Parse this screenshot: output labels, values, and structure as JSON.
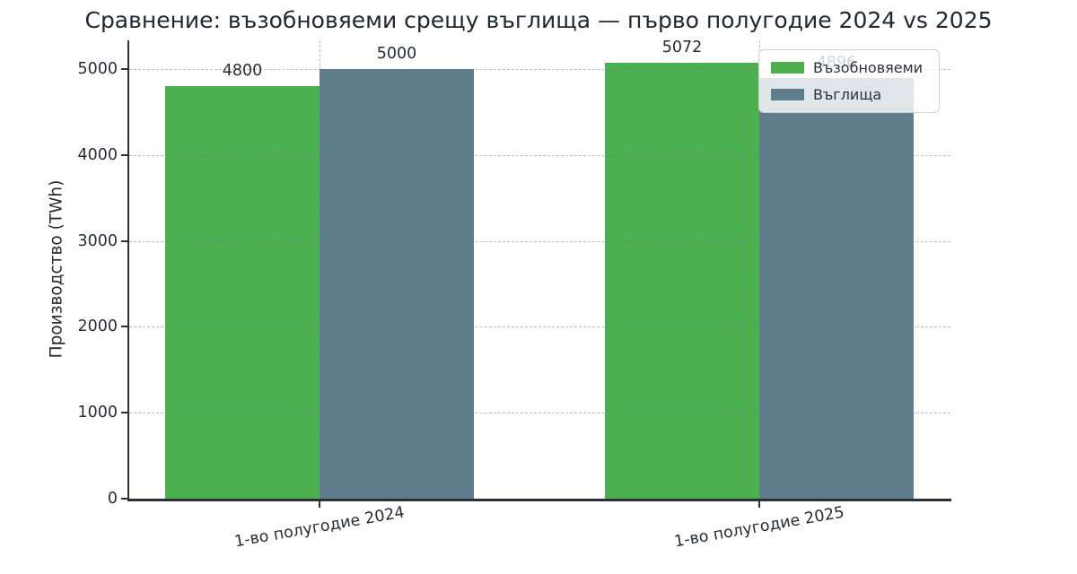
{
  "chart_data": {
    "type": "bar",
    "title": "Сравнение: възобновяеми срещу въглища — първо полугодие 2024 vs 2025",
    "ylabel": "Производство (TWh)",
    "xlabel": "",
    "categories": [
      "1-во полугодие 2024",
      "1-во полугодие 2025"
    ],
    "series": [
      {
        "name": "Възобновяеми",
        "color": "#4caf50",
        "values": [
          4800,
          5072
        ]
      },
      {
        "name": "Въглища",
        "color": "#607d8b",
        "values": [
          5000,
          4896
        ]
      }
    ],
    "bar_value_labels": [
      [
        "4800",
        "5072"
      ],
      [
        "5000",
        "4896"
      ]
    ],
    "yticks": [
      0,
      1000,
      2000,
      3000,
      4000,
      5000
    ],
    "ylim": [
      0,
      5334
    ],
    "grid": {
      "orientation": "both",
      "style": "dashed",
      "drawn_above_bars": true
    },
    "legend": {
      "position": "upper right",
      "entries": [
        "Възобновяеми",
        "Въглища"
      ]
    },
    "colors": {
      "renewables": "#4caf50",
      "coal": "#607d8b",
      "text": "#262c36",
      "spine": "#2b2f36"
    }
  }
}
